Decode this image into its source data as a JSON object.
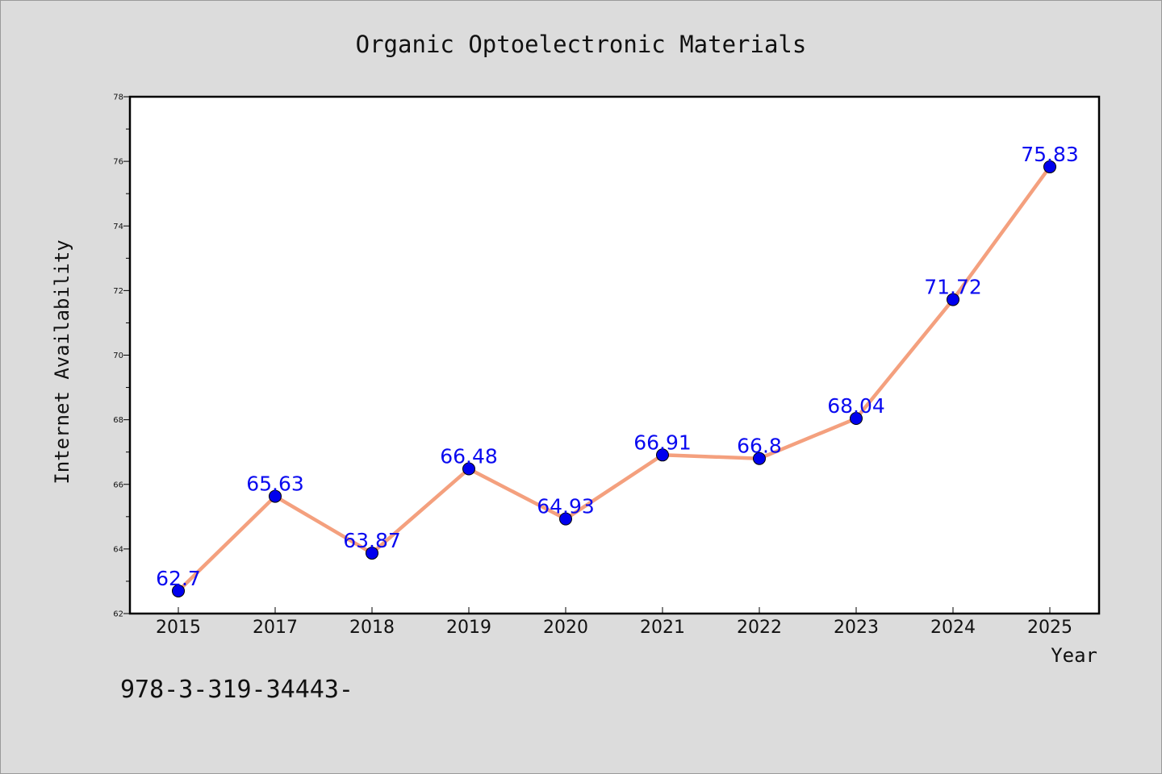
{
  "chart_data": {
    "type": "line",
    "title": "Organic Optoelectronic Materials",
    "xlabel": "Year",
    "ylabel": "Internet Availability",
    "categories": [
      "2015",
      "2017",
      "2018",
      "2019",
      "2020",
      "2021",
      "2022",
      "2023",
      "2024",
      "2025"
    ],
    "series": [
      {
        "values": [
          62.7,
          65.63,
          63.87,
          66.48,
          64.93,
          66.91,
          66.8,
          68.04,
          71.72,
          75.83
        ],
        "data_labels": [
          "62.7",
          "65.63",
          "63.87",
          "66.48",
          "64.93",
          "66.91",
          "66.8",
          "68.04",
          "71.72",
          "75.83"
        ]
      }
    ],
    "ylim": [
      62,
      78
    ],
    "yticks": [
      "62",
      "64",
      "66",
      "68",
      "70",
      "72",
      "74",
      "76",
      "78"
    ],
    "grid": false,
    "line_color": "#f4a07e",
    "marker_color": "#0000ee",
    "label_color": "#0a0af0"
  },
  "footer_text": "978-3-319-34443-"
}
